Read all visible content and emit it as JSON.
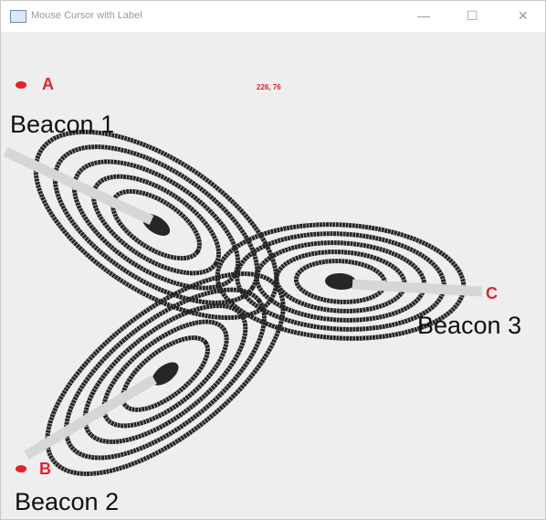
{
  "window": {
    "title": "Mouse Cursor with Label"
  },
  "cursor_label": "226, 76",
  "points": [
    {
      "label": "A"
    },
    {
      "label": "B"
    },
    {
      "label": "C"
    }
  ],
  "beacons": [
    {
      "label": "Beacon 1"
    },
    {
      "label": "Beacon 2"
    },
    {
      "label": "Beacon 3"
    }
  ]
}
